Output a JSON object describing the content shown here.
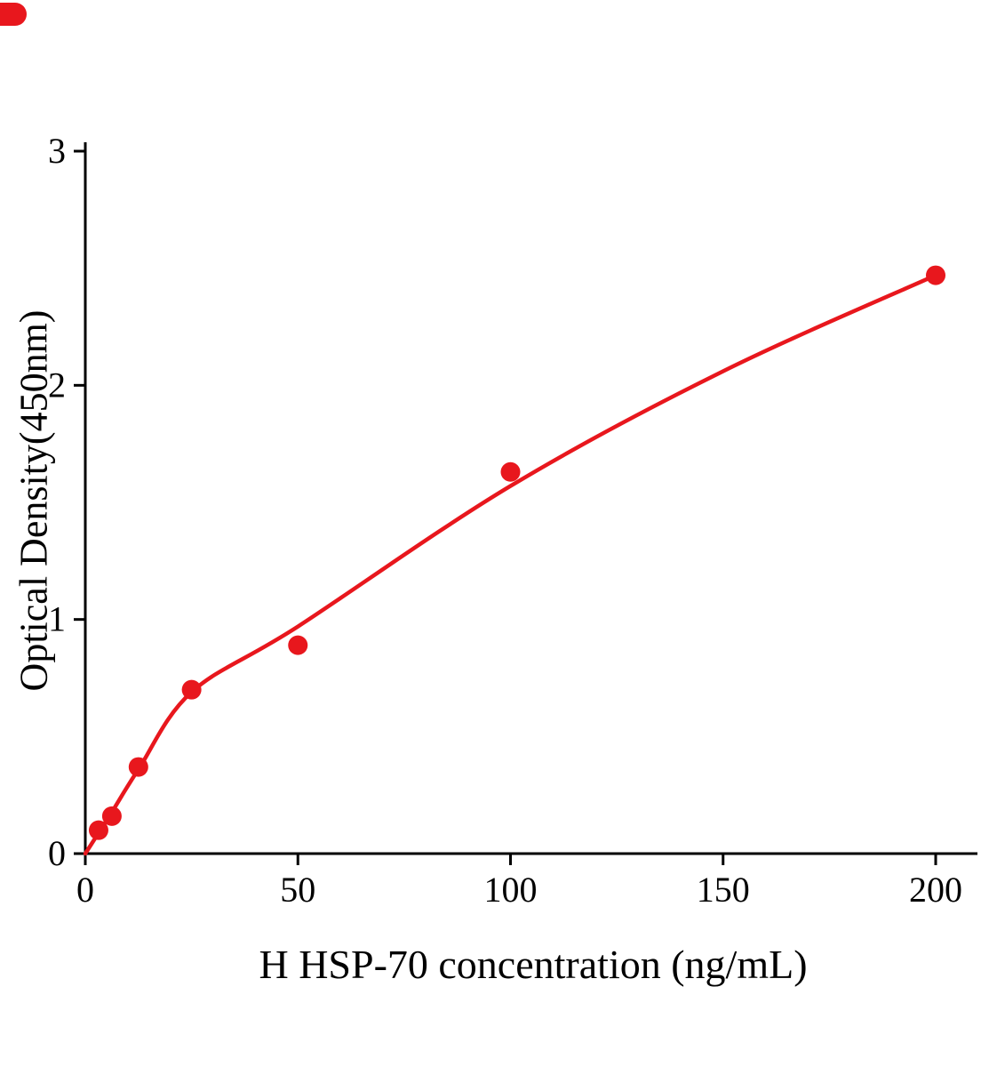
{
  "figure": {
    "background": "#ffffff"
  },
  "chart_data": {
    "type": "scatter",
    "title": "",
    "xlabel": "H HSP-70 concentration (ng/mL)",
    "ylabel": "Optical Density(450nm)",
    "xlim": [
      0,
      210
    ],
    "ylim": [
      0,
      3
    ],
    "xticks": [
      0,
      50,
      100,
      150,
      200
    ],
    "yticks": [
      0,
      1,
      2,
      3
    ],
    "grid": false,
    "legend": "none",
    "colors": {
      "accent": "#e8171d",
      "axis": "#000000"
    },
    "series": [
      {
        "name": "standard-points",
        "role": "points",
        "type": "scatter",
        "marker": "circle",
        "points": [
          [
            3.125,
            0.1
          ],
          [
            6.25,
            0.16
          ],
          [
            12.5,
            0.37
          ],
          [
            25,
            0.7
          ],
          [
            50,
            0.89
          ],
          [
            100,
            1.63
          ],
          [
            200,
            2.47
          ]
        ]
      },
      {
        "name": "fitted-curve",
        "role": "fit",
        "type": "line",
        "points": [
          [
            0,
            0
          ],
          [
            6,
            0.17
          ],
          [
            12.5,
            0.36
          ],
          [
            25,
            0.69
          ],
          [
            50,
            0.97
          ],
          [
            100,
            1.57
          ],
          [
            150,
            2.06
          ],
          [
            200,
            2.47
          ]
        ]
      }
    ]
  }
}
